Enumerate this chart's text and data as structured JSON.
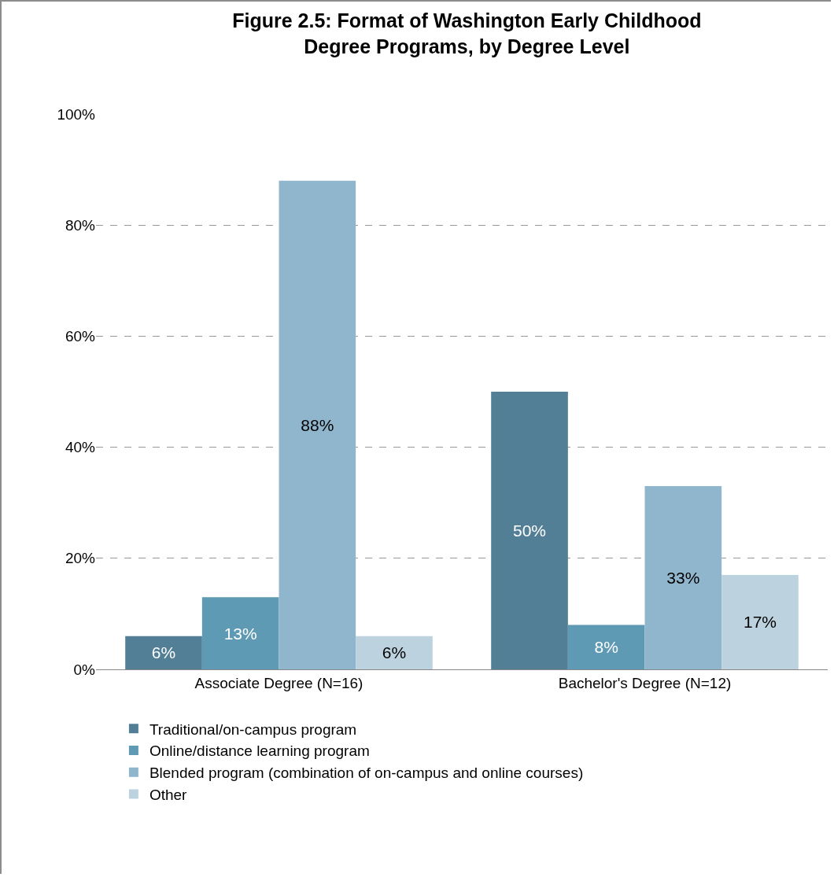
{
  "chart_data": {
    "type": "bar",
    "title": "Figure 2.5: Format of Washington Early Childhood Degree Programs, by Degree Level",
    "categories": [
      "Associate Degree (N=16)",
      "Bachelor's Degree (N=12)"
    ],
    "series": [
      {
        "name": "Traditional/on-campus program",
        "color": "#537f96",
        "values": [
          6,
          50
        ],
        "value_labels": [
          "6%",
          "50%"
        ]
      },
      {
        "name": "Online/distance learning program",
        "color": "#5f9ab5",
        "values": [
          13,
          8
        ],
        "value_labels": [
          "13%",
          "8%"
        ]
      },
      {
        "name": "Blended program (combination of on-campus and online courses)",
        "color": "#8fb6cc",
        "values": [
          88,
          33
        ],
        "value_labels": [
          "88%",
          "33%"
        ]
      },
      {
        "name": "Other",
        "color": "#bcd3df",
        "values": [
          6,
          17
        ],
        "value_labels": [
          "6%",
          "17%"
        ]
      }
    ],
    "ylim": [
      0,
      100
    ],
    "yticks": [
      {
        "value": 0,
        "label": "0%"
      },
      {
        "value": 20,
        "label": "20%"
      },
      {
        "value": 40,
        "label": "40%"
      },
      {
        "value": 60,
        "label": "60%"
      },
      {
        "value": 80,
        "label": "80%"
      },
      {
        "value": 100,
        "label": "100%"
      }
    ],
    "grid": "y",
    "legend": "bottom"
  }
}
